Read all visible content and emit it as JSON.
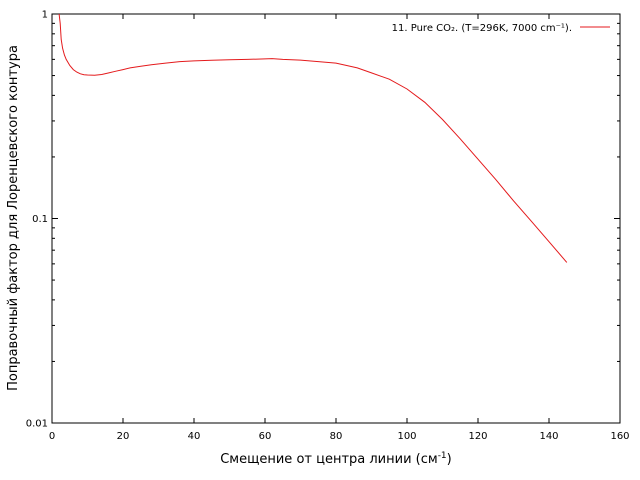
{
  "chart_data": {
    "type": "line",
    "title": "",
    "xlabel": "Смещение от центра линии (см",
    "xlabel_sup": "-1",
    "xlabel_tail": ")",
    "ylabel": "Поправочный фактор для Лоренцевского контура",
    "xlim": [
      0,
      160
    ],
    "ylim": [
      0.01,
      1
    ],
    "yscale": "log",
    "grid": false,
    "legend_position": "top-right",
    "x_ticks": [
      0,
      20,
      40,
      60,
      80,
      100,
      120,
      140,
      160
    ],
    "x_tick_labels": [
      "0",
      "20",
      "40",
      "60",
      "80",
      "100",
      "120",
      "140",
      "160"
    ],
    "y_ticks": [
      0.01,
      0.1,
      1
    ],
    "y_tick_labels": [
      "0.01",
      "0.1",
      "1"
    ],
    "series": [
      {
        "name": "11. Pure CO₂. (T=296K, 7000 cm⁻¹).",
        "color": "#e41a1c",
        "x": [
          2,
          2.3,
          2.6,
          3,
          3.5,
          4,
          5,
          6,
          7,
          8,
          9,
          10,
          12,
          14,
          16,
          18,
          20,
          22,
          25,
          28,
          32,
          36,
          40,
          45,
          50,
          55,
          60,
          62,
          65,
          70,
          75,
          80,
          83,
          86,
          90,
          95,
          100,
          105,
          110,
          115,
          120,
          125,
          130,
          135,
          140,
          145
        ],
        "y": [
          1.0,
          0.9,
          0.75,
          0.68,
          0.63,
          0.6,
          0.56,
          0.535,
          0.52,
          0.51,
          0.505,
          0.503,
          0.502,
          0.506,
          0.515,
          0.525,
          0.535,
          0.545,
          0.555,
          0.565,
          0.575,
          0.585,
          0.59,
          0.594,
          0.597,
          0.6,
          0.603,
          0.605,
          0.6,
          0.595,
          0.585,
          0.575,
          0.56,
          0.545,
          0.515,
          0.48,
          0.43,
          0.37,
          0.305,
          0.245,
          0.195,
          0.155,
          0.122,
          0.097,
          0.077,
          0.061
        ]
      }
    ]
  }
}
